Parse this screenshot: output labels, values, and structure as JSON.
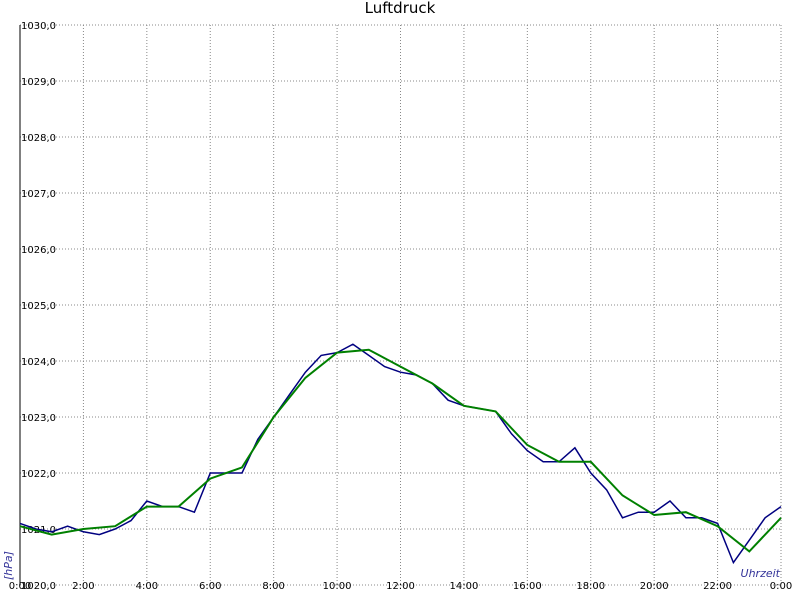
{
  "chart_data": {
    "type": "line",
    "title": "Luftdruck",
    "y_label": "[hPa]",
    "x_label": "Uhrzeit",
    "xlim": [
      0,
      24
    ],
    "xticks": [
      {
        "value": 0,
        "label": "0:00"
      },
      {
        "value": 2,
        "label": "2:00"
      },
      {
        "value": 4,
        "label": "4:00"
      },
      {
        "value": 6,
        "label": "6:00"
      },
      {
        "value": 8,
        "label": "8:00"
      },
      {
        "value": 10,
        "label": "10:00"
      },
      {
        "value": 12,
        "label": "12:00"
      },
      {
        "value": 14,
        "label": "14:00"
      },
      {
        "value": 16,
        "label": "16:00"
      },
      {
        "value": 18,
        "label": "18:00"
      },
      {
        "value": 20,
        "label": "20:00"
      },
      {
        "value": 22,
        "label": "22:00"
      },
      {
        "value": 24,
        "label": "0:00"
      }
    ],
    "ylim": [
      1020,
      1030
    ],
    "yticks": [
      {
        "value": 1020,
        "label": "1020,0"
      },
      {
        "value": 1021,
        "label": "1021,0"
      },
      {
        "value": 1022,
        "label": "1022,0"
      },
      {
        "value": 1023,
        "label": "1023,0"
      },
      {
        "value": 1024,
        "label": "1024,0"
      },
      {
        "value": 1025,
        "label": "1025,0"
      },
      {
        "value": 1026,
        "label": "1026,0"
      },
      {
        "value": 1027,
        "label": "1027,0"
      },
      {
        "value": 1028,
        "label": "1028,0"
      },
      {
        "value": 1029,
        "label": "1029,0"
      },
      {
        "value": 1030,
        "label": "1030,0"
      }
    ],
    "grid": true,
    "series": [
      {
        "color": "#000080",
        "x": [
          0,
          0.5,
          1,
          1.5,
          2,
          2.5,
          3,
          3.5,
          4,
          4.5,
          5,
          5.5,
          6,
          6.5,
          7,
          7.5,
          8,
          8.5,
          9,
          9.5,
          10,
          10.5,
          11,
          11.5,
          12,
          12.5,
          13,
          13.5,
          14,
          14.5,
          15,
          15.5,
          16,
          16.5,
          17,
          17.5,
          18,
          18.5,
          19,
          19.5,
          20,
          20.5,
          21,
          21.5,
          22,
          22.5,
          23,
          23.5,
          24
        ],
        "values": [
          1021.1,
          1021.0,
          1020.95,
          1021.05,
          1020.95,
          1020.9,
          1021.0,
          1021.15,
          1021.5,
          1021.4,
          1021.4,
          1021.3,
          1022.0,
          1022.0,
          1022.0,
          1022.6,
          1023.0,
          1023.4,
          1023.8,
          1024.1,
          1024.15,
          1024.3,
          1024.1,
          1023.9,
          1023.8,
          1023.75,
          1023.6,
          1023.3,
          1023.2,
          1023.15,
          1023.1,
          1022.7,
          1022.4,
          1022.2,
          1022.2,
          1022.45,
          1022.0,
          1021.7,
          1021.2,
          1021.3,
          1021.3,
          1021.5,
          1021.2,
          1021.2,
          1021.1,
          1020.4,
          1020.8,
          1021.2,
          1021.4
        ]
      },
      {
        "color": "#008000",
        "x": [
          0,
          1,
          2,
          3,
          4,
          5,
          6,
          7,
          8,
          9,
          10,
          11,
          12,
          13,
          14,
          15,
          16,
          17,
          18,
          19,
          20,
          21,
          22,
          23,
          24
        ],
        "values": [
          1021.05,
          1020.9,
          1021.0,
          1021.05,
          1021.4,
          1021.4,
          1021.9,
          1022.1,
          1023.0,
          1023.7,
          1024.15,
          1024.2,
          1023.9,
          1023.6,
          1023.2,
          1023.1,
          1022.5,
          1022.2,
          1022.2,
          1021.6,
          1021.25,
          1021.3,
          1021.05,
          1020.6,
          1021.2
        ]
      }
    ]
  }
}
